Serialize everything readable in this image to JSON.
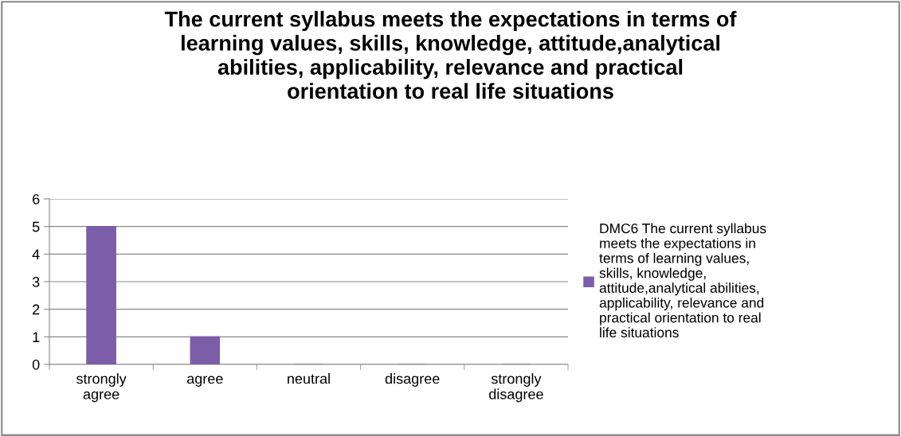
{
  "chart_data": {
    "type": "bar",
    "title": "The current syllabus meets the expectations in terms of learning values, skills, knowledge, attitude,analytical abilities, applicability, relevance and practical orientation to real life situations",
    "categories": [
      "strongly agree",
      "agree",
      "neutral",
      "disagree",
      "strongly disagree"
    ],
    "series": [
      {
        "name": "DMC6 The current syllabus meets the expectations in terms of learning values, skills, knowledge, attitude,analytical abilities, applicability, relevance and practical orientation to real life situations",
        "color": "#7b5ea7",
        "values": [
          5,
          1,
          0,
          0,
          0
        ]
      }
    ],
    "ylim": [
      0,
      6
    ],
    "yticks": [
      0,
      1,
      2,
      3,
      4,
      5,
      6
    ],
    "grid": "y",
    "legend": "right"
  }
}
